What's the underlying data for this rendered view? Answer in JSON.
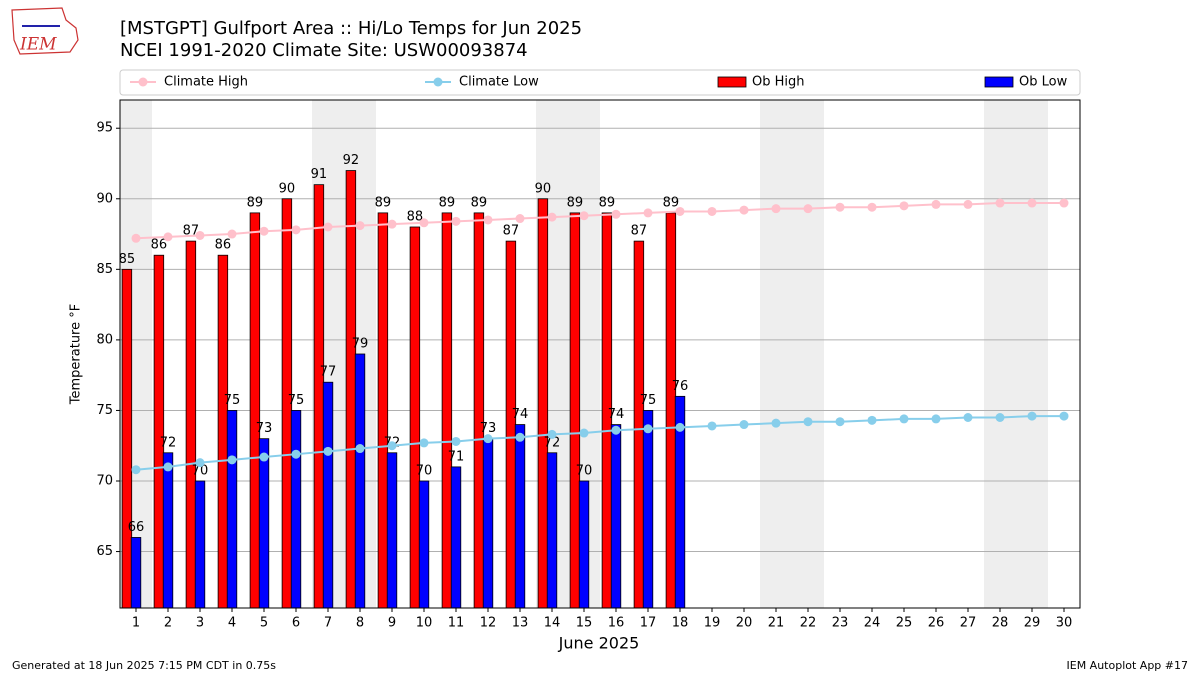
{
  "chart_data": {
    "type": "bar",
    "title": "[MSTGPT] Gulfport Area :: Hi/Lo Temps for Jun 2025",
    "subtitle": "NCEI 1991-2020 Climate Site: USW00093874",
    "x_label": "June 2025",
    "y_label": "Temperature °F",
    "footer_left": "Generated at 18 Jun 2025 7:15 PM CDT in 0.75s",
    "footer_right": "IEM Autoplot App #17",
    "logo_text": "IEM",
    "categories": [
      "1",
      "2",
      "3",
      "4",
      "5",
      "6",
      "7",
      "8",
      "9",
      "10",
      "11",
      "12",
      "13",
      "14",
      "15",
      "16",
      "17",
      "18",
      "19",
      "20",
      "21",
      "22",
      "23",
      "24",
      "25",
      "26",
      "27",
      "28",
      "29",
      "30"
    ],
    "shaded": [
      0,
      6,
      7,
      13,
      14,
      20,
      21,
      27,
      28
    ],
    "ylim": [
      61,
      97
    ],
    "yticks": [
      65,
      70,
      75,
      80,
      85,
      90,
      95
    ],
    "grid": true,
    "series": [
      {
        "name": "Climate High",
        "type": "line",
        "color": "#ffc0cb",
        "values": [
          87.2,
          87.3,
          87.4,
          87.5,
          87.7,
          87.8,
          88.0,
          88.1,
          88.2,
          88.3,
          88.4,
          88.5,
          88.6,
          88.7,
          88.8,
          88.9,
          89.0,
          89.1,
          89.1,
          89.2,
          89.3,
          89.3,
          89.4,
          89.4,
          89.5,
          89.6,
          89.6,
          89.7,
          89.7,
          89.7
        ]
      },
      {
        "name": "Climate Low",
        "type": "line",
        "color": "#87ceeb",
        "values": [
          70.8,
          71.0,
          71.3,
          71.5,
          71.7,
          71.9,
          72.1,
          72.3,
          72.5,
          72.7,
          72.8,
          73.0,
          73.1,
          73.3,
          73.4,
          73.6,
          73.7,
          73.8,
          73.9,
          74.0,
          74.1,
          74.2,
          74.2,
          74.3,
          74.4,
          74.4,
          74.5,
          74.5,
          74.6,
          74.6
        ]
      },
      {
        "name": "Ob High",
        "type": "bar",
        "color": "#ff0000",
        "values": [
          85,
          86,
          87,
          86,
          89,
          90,
          91,
          92,
          89,
          88,
          89,
          89,
          87,
          90,
          89,
          89,
          87,
          89,
          null,
          null,
          null,
          null,
          null,
          null,
          null,
          null,
          null,
          null,
          null,
          null
        ]
      },
      {
        "name": "Ob Low",
        "type": "bar",
        "color": "#0000ff",
        "values": [
          66,
          72,
          70,
          75,
          73,
          75,
          77,
          79,
          72,
          70,
          71,
          73,
          74,
          72,
          70,
          74,
          75,
          76,
          null,
          null,
          null,
          null,
          null,
          null,
          null,
          null,
          null,
          null,
          null,
          null
        ]
      }
    ]
  }
}
